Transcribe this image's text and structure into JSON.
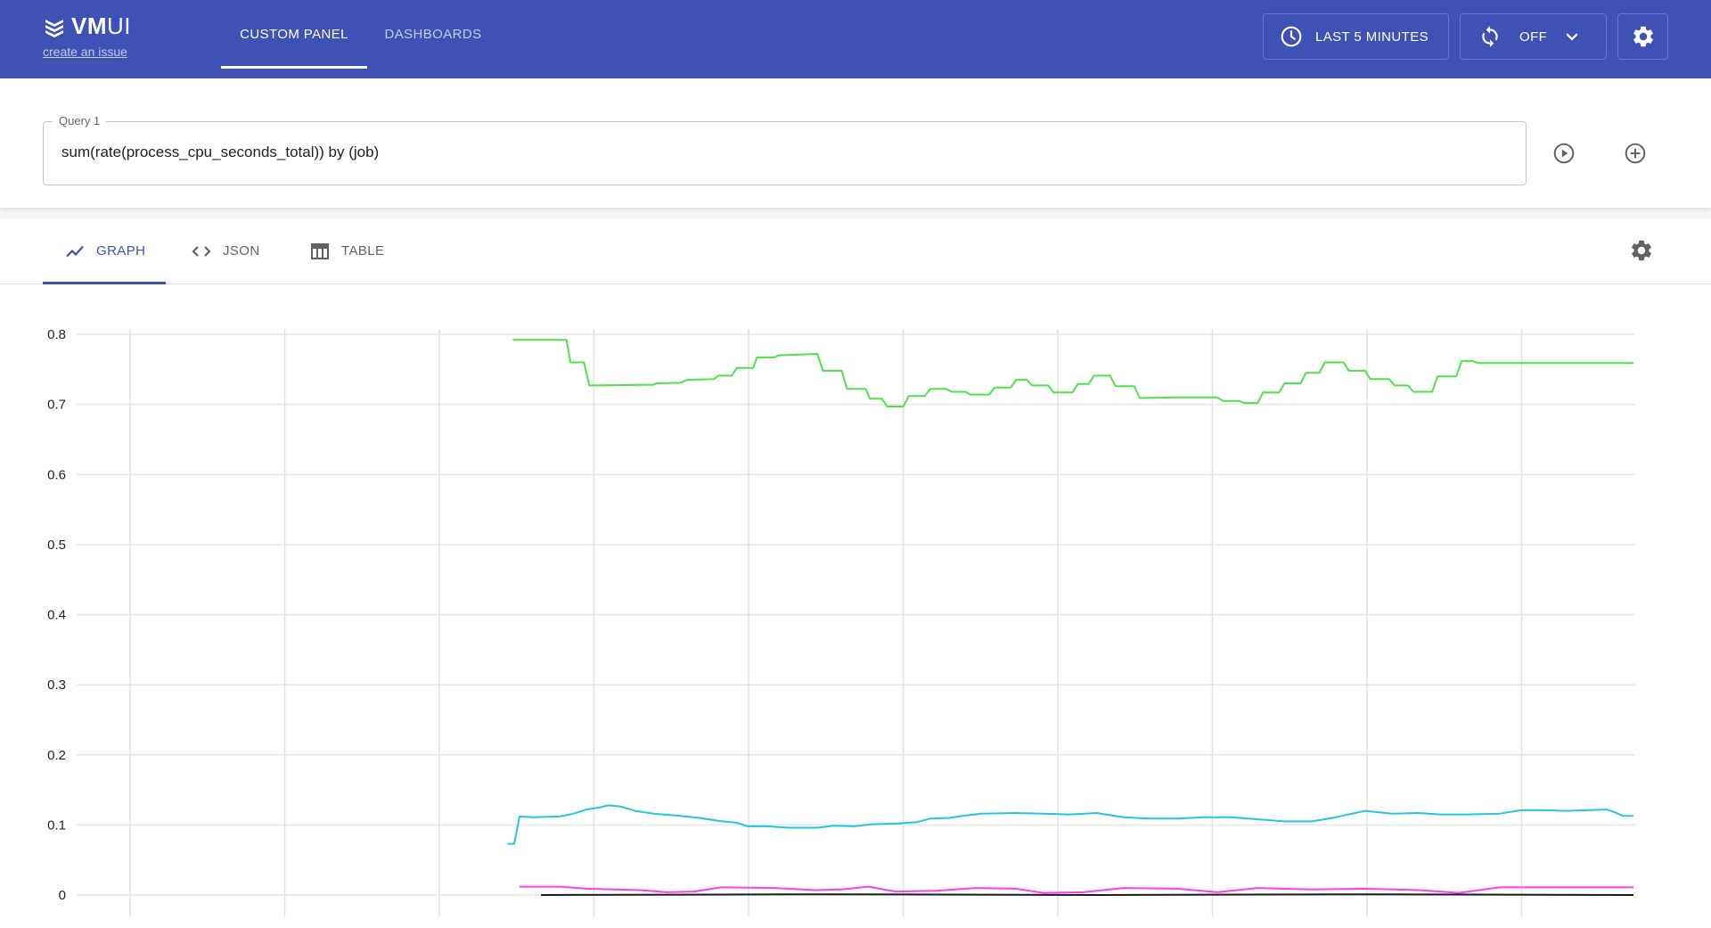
{
  "header": {
    "logo_bold": "VM",
    "logo_light": "UI",
    "issue_link": "create an issue",
    "nav": [
      {
        "label": "CUSTOM PANEL",
        "active": true
      },
      {
        "label": "DASHBOARDS",
        "active": false
      }
    ],
    "time_range": "LAST 5 MINUTES",
    "refresh": "OFF",
    "icons": {
      "time": "clock-icon",
      "refresh": "refresh-icon",
      "dropdown": "chevron-down-icon",
      "settings": "gear-icon"
    },
    "colors": {
      "background": "#3f51b5"
    }
  },
  "query": {
    "label": "Query 1",
    "value": "sum(rate(process_cpu_seconds_total)) by (job)",
    "icons": {
      "run": "play-circle-icon",
      "add": "plus-circle-icon"
    }
  },
  "results": {
    "tabs": [
      {
        "label": "GRAPH",
        "icon": "line-chart-icon",
        "active": true
      },
      {
        "label": "JSON",
        "icon": "code-icon",
        "active": false
      },
      {
        "label": "TABLE",
        "icon": "table-icon",
        "active": false
      }
    ],
    "settings_icon": "gear-icon",
    "accent": "#3f51b5"
  },
  "chart_data": {
    "type": "line",
    "ylim": [
      0,
      0.8
    ],
    "y_ticks": [
      0.8,
      0.7,
      0.6,
      0.5,
      0.4,
      0.3,
      0.2,
      0.1,
      0
    ],
    "y_tick_labels": [
      "0.8",
      "0.7",
      "0.6",
      "0.5",
      "0.4",
      "0.3",
      "0.2",
      "0.1",
      "0"
    ],
    "x_gridlines": 10,
    "grid": true,
    "legend": "none",
    "series": [
      {
        "color": "#4fe34a",
        "points": [
          [
            0.165,
            0.792
          ],
          [
            0.205,
            0.792
          ],
          [
            0.208,
            0.76
          ],
          [
            0.218,
            0.76
          ],
          [
            0.222,
            0.727
          ],
          [
            0.27,
            0.728
          ],
          [
            0.272,
            0.73
          ],
          [
            0.29,
            0.731
          ],
          [
            0.295,
            0.735
          ],
          [
            0.315,
            0.736
          ],
          [
            0.318,
            0.741
          ],
          [
            0.328,
            0.741
          ],
          [
            0.332,
            0.752
          ],
          [
            0.344,
            0.752
          ],
          [
            0.347,
            0.767
          ],
          [
            0.36,
            0.767
          ],
          [
            0.363,
            0.77
          ],
          [
            0.392,
            0.772
          ],
          [
            0.396,
            0.748
          ],
          [
            0.41,
            0.748
          ],
          [
            0.414,
            0.722
          ],
          [
            0.428,
            0.722
          ],
          [
            0.431,
            0.708
          ],
          [
            0.44,
            0.708
          ],
          [
            0.444,
            0.697
          ],
          [
            0.456,
            0.697
          ],
          [
            0.46,
            0.712
          ],
          [
            0.472,
            0.712
          ],
          [
            0.476,
            0.722
          ],
          [
            0.488,
            0.722
          ],
          [
            0.492,
            0.718
          ],
          [
            0.502,
            0.718
          ],
          [
            0.506,
            0.714
          ],
          [
            0.52,
            0.714
          ],
          [
            0.524,
            0.724
          ],
          [
            0.536,
            0.724
          ],
          [
            0.54,
            0.735
          ],
          [
            0.548,
            0.735
          ],
          [
            0.552,
            0.727
          ],
          [
            0.564,
            0.727
          ],
          [
            0.568,
            0.717
          ],
          [
            0.582,
            0.717
          ],
          [
            0.586,
            0.729
          ],
          [
            0.594,
            0.729
          ],
          [
            0.598,
            0.741
          ],
          [
            0.61,
            0.741
          ],
          [
            0.614,
            0.726
          ],
          [
            0.628,
            0.726
          ],
          [
            0.632,
            0.709
          ],
          [
            0.66,
            0.71
          ],
          [
            0.69,
            0.71
          ],
          [
            0.694,
            0.705
          ],
          [
            0.706,
            0.705
          ],
          [
            0.71,
            0.702
          ],
          [
            0.72,
            0.702
          ],
          [
            0.724,
            0.717
          ],
          [
            0.736,
            0.717
          ],
          [
            0.74,
            0.73
          ],
          [
            0.752,
            0.73
          ],
          [
            0.756,
            0.745
          ],
          [
            0.766,
            0.745
          ],
          [
            0.77,
            0.76
          ],
          [
            0.784,
            0.76
          ],
          [
            0.788,
            0.748
          ],
          [
            0.8,
            0.748
          ],
          [
            0.804,
            0.736
          ],
          [
            0.818,
            0.736
          ],
          [
            0.822,
            0.727
          ],
          [
            0.832,
            0.727
          ],
          [
            0.836,
            0.718
          ],
          [
            0.85,
            0.718
          ],
          [
            0.854,
            0.74
          ],
          [
            0.868,
            0.74
          ],
          [
            0.872,
            0.762
          ],
          [
            0.88,
            0.762
          ],
          [
            0.884,
            0.759
          ],
          [
            1.0,
            0.759
          ]
        ]
      },
      {
        "color": "#26c6da",
        "points": [
          [
            0.161,
            0.073
          ],
          [
            0.166,
            0.073
          ],
          [
            0.17,
            0.112
          ],
          [
            0.18,
            0.111
          ],
          [
            0.2,
            0.112
          ],
          [
            0.21,
            0.116
          ],
          [
            0.22,
            0.122
          ],
          [
            0.23,
            0.125
          ],
          [
            0.236,
            0.128
          ],
          [
            0.246,
            0.126
          ],
          [
            0.256,
            0.12
          ],
          [
            0.27,
            0.116
          ],
          [
            0.29,
            0.113
          ],
          [
            0.304,
            0.11
          ],
          [
            0.318,
            0.106
          ],
          [
            0.332,
            0.103
          ],
          [
            0.34,
            0.098
          ],
          [
            0.354,
            0.098
          ],
          [
            0.37,
            0.096
          ],
          [
            0.392,
            0.096
          ],
          [
            0.404,
            0.099
          ],
          [
            0.42,
            0.098
          ],
          [
            0.432,
            0.101
          ],
          [
            0.452,
            0.102
          ],
          [
            0.466,
            0.104
          ],
          [
            0.476,
            0.109
          ],
          [
            0.49,
            0.11
          ],
          [
            0.5,
            0.113
          ],
          [
            0.514,
            0.116
          ],
          [
            0.54,
            0.117
          ],
          [
            0.56,
            0.116
          ],
          [
            0.58,
            0.115
          ],
          [
            0.6,
            0.117
          ],
          [
            0.62,
            0.111
          ],
          [
            0.64,
            0.109
          ],
          [
            0.66,
            0.109
          ],
          [
            0.68,
            0.111
          ],
          [
            0.7,
            0.111
          ],
          [
            0.72,
            0.108
          ],
          [
            0.74,
            0.105
          ],
          [
            0.76,
            0.105
          ],
          [
            0.776,
            0.11
          ],
          [
            0.79,
            0.116
          ],
          [
            0.8,
            0.12
          ],
          [
            0.82,
            0.116
          ],
          [
            0.84,
            0.117
          ],
          [
            0.856,
            0.115
          ],
          [
            0.876,
            0.115
          ],
          [
            0.9,
            0.116
          ],
          [
            0.916,
            0.121
          ],
          [
            0.936,
            0.121
          ],
          [
            0.95,
            0.12
          ],
          [
            0.964,
            0.121
          ],
          [
            0.98,
            0.122
          ],
          [
            0.986,
            0.118
          ],
          [
            0.992,
            0.113
          ],
          [
            1.0,
            0.113
          ]
        ]
      },
      {
        "color": "#ff3cf0",
        "points": [
          [
            0.17,
            0.012
          ],
          [
            0.2,
            0.012
          ],
          [
            0.22,
            0.009
          ],
          [
            0.24,
            0.008
          ],
          [
            0.26,
            0.007
          ],
          [
            0.28,
            0.004
          ],
          [
            0.3,
            0.005
          ],
          [
            0.32,
            0.011
          ],
          [
            0.36,
            0.01
          ],
          [
            0.39,
            0.007
          ],
          [
            0.41,
            0.008
          ],
          [
            0.43,
            0.012
          ],
          [
            0.45,
            0.005
          ],
          [
            0.48,
            0.006
          ],
          [
            0.51,
            0.01
          ],
          [
            0.54,
            0.009
          ],
          [
            0.56,
            0.003
          ],
          [
            0.59,
            0.004
          ],
          [
            0.62,
            0.01
          ],
          [
            0.66,
            0.009
          ],
          [
            0.69,
            0.004
          ],
          [
            0.72,
            0.01
          ],
          [
            0.76,
            0.008
          ],
          [
            0.8,
            0.009
          ],
          [
            0.84,
            0.007
          ],
          [
            0.87,
            0.003
          ],
          [
            0.9,
            0.011
          ],
          [
            0.94,
            0.011
          ],
          [
            1.0,
            0.011
          ]
        ]
      },
      {
        "color": "#1b1b1b",
        "points": [
          [
            0.186,
            0.0
          ],
          [
            0.4,
            0.001
          ],
          [
            0.6,
            0.0
          ],
          [
            0.8,
            0.001
          ],
          [
            1.0,
            0.0
          ]
        ]
      }
    ]
  }
}
